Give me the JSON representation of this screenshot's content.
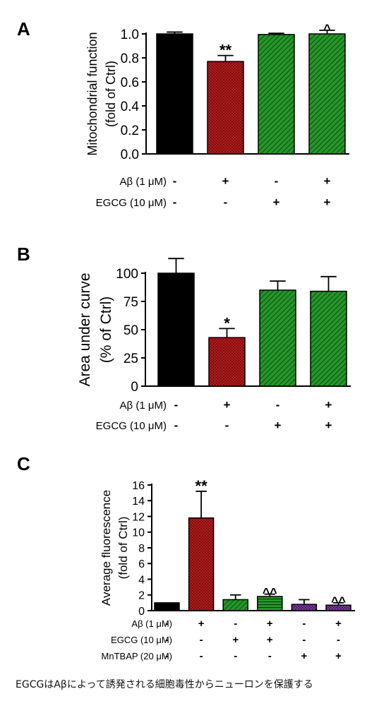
{
  "chart_data": [
    {
      "type": "bar",
      "panel_label": "A",
      "ylabel_lines": [
        "Mitochondrial function",
        "(fold of Ctrl)"
      ],
      "ylim": [
        0.0,
        1.0
      ],
      "yticks": [
        0.0,
        0.2,
        0.4,
        0.6,
        0.8,
        1.0
      ],
      "ytick_labels": [
        "0.0",
        "0.2",
        "0.4",
        "0.6",
        "0.8",
        "1.0"
      ],
      "values": [
        1.0,
        0.77,
        0.995,
        1.0
      ],
      "errors": [
        0.015,
        0.05,
        0.01,
        0.03
      ],
      "significance": [
        "",
        "**",
        "",
        "^"
      ],
      "bar_colors": [
        "#000000",
        "#a01818",
        "#1e8a1e",
        "#1e8a1e"
      ],
      "bar_patterns": [
        "solid",
        "dots",
        "stripes",
        "stripes"
      ],
      "conditions": [
        {
          "label": "Aβ (1 μM)",
          "marks": [
            "-",
            "+",
            "-",
            "+"
          ]
        },
        {
          "label": "EGCG (10 μM)",
          "marks": [
            "-",
            "-",
            "+",
            "+"
          ]
        }
      ]
    },
    {
      "type": "bar",
      "panel_label": "B",
      "ylabel_lines": [
        "Area under curve",
        "(% of Ctrl)"
      ],
      "ylim": [
        0,
        100
      ],
      "yticks": [
        0,
        25,
        50,
        75,
        100
      ],
      "ytick_labels": [
        "0",
        "25",
        "50",
        "75",
        "100"
      ],
      "values": [
        100,
        43,
        85,
        84
      ],
      "errors": [
        13,
        8,
        8,
        13
      ],
      "significance": [
        "",
        "*",
        "",
        ""
      ],
      "bar_colors": [
        "#000000",
        "#a01818",
        "#1e8a1e",
        "#1e8a1e"
      ],
      "bar_patterns": [
        "solid",
        "dots",
        "stripes",
        "stripes"
      ],
      "conditions": [
        {
          "label": "Aβ (1 μM)",
          "marks": [
            "-",
            "+",
            "-",
            "+"
          ]
        },
        {
          "label": "EGCG (10 μM)",
          "marks": [
            "-",
            "-",
            "+",
            "+"
          ]
        }
      ]
    },
    {
      "type": "bar",
      "panel_label": "C",
      "ylabel_lines": [
        "Average fluorescence",
        "(fold of Ctrl)"
      ],
      "ylim": [
        0,
        16
      ],
      "yticks": [
        0,
        2,
        4,
        6,
        8,
        10,
        12,
        14,
        16
      ],
      "ytick_labels": [
        "0",
        "2",
        "4",
        "6",
        "8",
        "10",
        "12",
        "14",
        "16"
      ],
      "values": [
        1.0,
        11.8,
        1.4,
        1.8,
        0.8,
        0.7
      ],
      "errors": [
        0.0,
        3.4,
        0.6,
        0.3,
        0.6,
        0.3
      ],
      "significance": [
        "",
        "**",
        "",
        "^^",
        "",
        "^^"
      ],
      "bar_colors": [
        "#000000",
        "#a01818",
        "#1e8a1e",
        "#1e8a1e",
        "#6a2a8a",
        "#6a2a8a"
      ],
      "bar_patterns": [
        "solid",
        "dots",
        "stripes",
        "grid",
        "dots",
        "dots"
      ],
      "conditions": [
        {
          "label": "Aβ (1 μM)",
          "marks": [
            "-",
            "+",
            "-",
            "+",
            "-",
            "+"
          ]
        },
        {
          "label": "EGCG (10 μM)",
          "marks": [
            "-",
            "-",
            "+",
            "+",
            "-",
            "-"
          ]
        },
        {
          "label": "MnTBAP (20 μM)",
          "marks": [
            "-",
            "-",
            "-",
            "-",
            "+",
            "+"
          ]
        }
      ]
    }
  ],
  "caption": "EGCGはAβによって誘発される細胞毒性からニューロンを保護する"
}
